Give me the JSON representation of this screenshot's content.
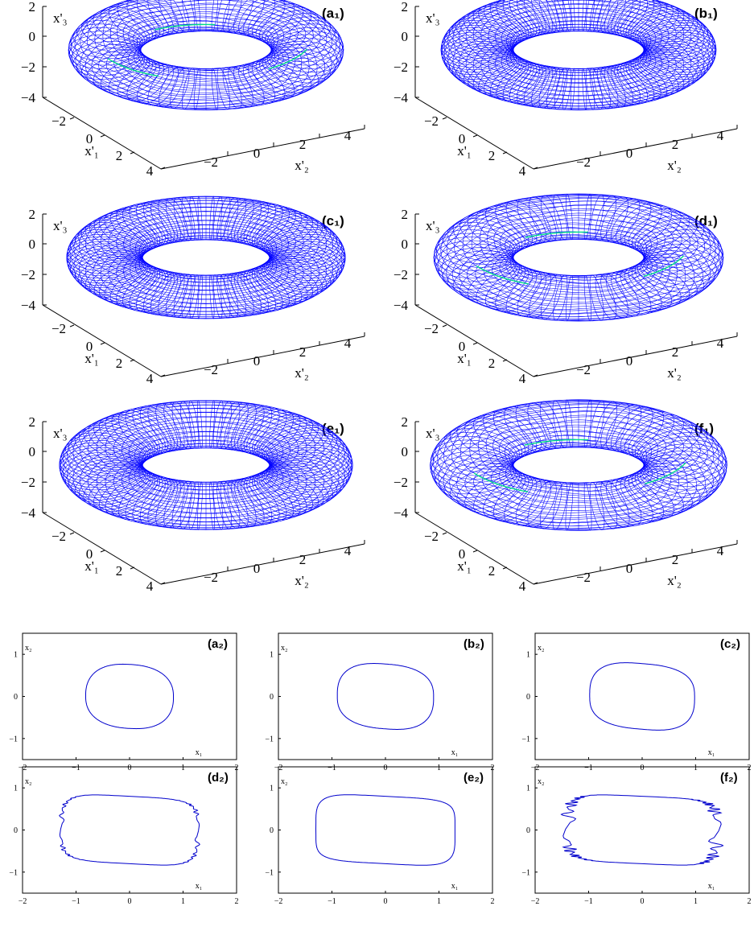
{
  "chart_data": [
    {
      "type": "surface3d",
      "panel_label": "(a₁)",
      "surface": "torus",
      "surface_color": "#0000ff",
      "highlight_color": "#00dd88",
      "major_radius": 2.8,
      "minor_radius": 1.0,
      "x1_range": [
        -4,
        4
      ],
      "x2_range": [
        -4,
        4
      ],
      "x3_range": [
        -4,
        2
      ],
      "x1_ticks": [
        "−2",
        "0",
        "2",
        "4"
      ],
      "x2_ticks": [
        "−2",
        "0",
        "2",
        "4"
      ],
      "x3_ticks": [
        "2",
        "0",
        "−2",
        "−4"
      ],
      "x1_label": "x'₁",
      "x2_label": "x'₂",
      "x3_label": "x'₃",
      "mesh": "perturbed",
      "mesh_density": 2
    },
    {
      "type": "surface3d",
      "panel_label": "(b₁)",
      "surface": "torus",
      "surface_color": "#0000ff",
      "highlight_color": "#00dd88",
      "major_radius": 2.8,
      "minor_radius": 1.0,
      "x1_range": [
        -4,
        4
      ],
      "x2_range": [
        -4,
        4
      ],
      "x3_range": [
        -4,
        2
      ],
      "x1_ticks": [
        "−2",
        "0",
        "2",
        "4"
      ],
      "x2_ticks": [
        "−2",
        "0",
        "2",
        "4"
      ],
      "x3_ticks": [
        "2",
        "0",
        "−2",
        "−4"
      ],
      "x1_label": "x'₁",
      "x2_label": "x'₂",
      "x3_label": "x'₃",
      "mesh": "smooth",
      "mesh_density": 3
    },
    {
      "type": "surface3d",
      "panel_label": "(c₁)",
      "surface": "torus",
      "surface_color": "#0000ff",
      "highlight_color": "#00dd88",
      "major_radius": 2.8,
      "minor_radius": 1.05,
      "x1_range": [
        -4,
        4
      ],
      "x2_range": [
        -4,
        4
      ],
      "x3_range": [
        -4,
        2
      ],
      "x1_ticks": [
        "−2",
        "0",
        "2",
        "4"
      ],
      "x2_ticks": [
        "−2",
        "0",
        "2",
        "4"
      ],
      "x3_ticks": [
        "2",
        "0",
        "−2",
        "−4"
      ],
      "x1_label": "x'₁",
      "x2_label": "x'₂",
      "x3_label": "x'₃",
      "mesh": "smooth",
      "mesh_density": 3
    },
    {
      "type": "surface3d",
      "panel_label": "(d₁)",
      "surface": "torus",
      "surface_color": "#0000ff",
      "highlight_color": "#00dd88",
      "major_radius": 2.9,
      "minor_radius": 1.1,
      "x1_range": [
        -4,
        4
      ],
      "x2_range": [
        -4,
        4
      ],
      "x3_range": [
        -4,
        2
      ],
      "x1_ticks": [
        "−2",
        "0",
        "2",
        "4"
      ],
      "x2_ticks": [
        "−2",
        "0",
        "2",
        "4"
      ],
      "x3_ticks": [
        "2",
        "0",
        "−2",
        "−4"
      ],
      "x1_label": "x'₁",
      "x2_label": "x'₂",
      "x3_label": "x'₃",
      "mesh": "perturbed",
      "mesh_density": 2
    },
    {
      "type": "surface3d",
      "panel_label": "(e₁)",
      "surface": "torus",
      "surface_color": "#0000ff",
      "highlight_color": "#00dd88",
      "major_radius": 2.9,
      "minor_radius": 1.15,
      "x1_range": [
        -4,
        4
      ],
      "x2_range": [
        -4,
        4
      ],
      "x3_range": [
        -4,
        2
      ],
      "x1_ticks": [
        "−2",
        "0",
        "2",
        "4"
      ],
      "x2_ticks": [
        "−2",
        "0",
        "2",
        "4"
      ],
      "x3_ticks": [
        "2",
        "0",
        "−2",
        "−4"
      ],
      "x1_label": "x'₁",
      "x2_label": "x'₂",
      "x3_label": "x'₃",
      "mesh": "smooth",
      "mesh_density": 3
    },
    {
      "type": "surface3d",
      "panel_label": "(f₁)",
      "surface": "torus",
      "surface_color": "#0000ff",
      "highlight_color": "#00dd88",
      "major_radius": 2.95,
      "minor_radius": 1.15,
      "x1_range": [
        -4,
        4
      ],
      "x2_range": [
        -4,
        4
      ],
      "x3_range": [
        -4,
        2
      ],
      "x1_ticks": [
        "−2",
        "0",
        "2",
        "4"
      ],
      "x2_ticks": [
        "−2",
        "0",
        "2",
        "4"
      ],
      "x3_ticks": [
        "2",
        "0",
        "−2",
        "−4"
      ],
      "x1_label": "x'₁",
      "x2_label": "x'₂",
      "x3_label": "x'₃",
      "mesh": "perturbed",
      "mesh_density": 2
    },
    {
      "type": "line",
      "panel_label": "(a₂)",
      "line_color": "#0000cc",
      "xlim": [
        -2,
        2
      ],
      "ylim": [
        -1.5,
        1.5
      ],
      "xticks": [
        -2,
        -1,
        0,
        1,
        2
      ],
      "yticks": [
        1,
        0,
        -1
      ],
      "xlabel": "x₁",
      "ylabel": "x₂",
      "curve": {
        "a": 0.82,
        "b": 0.76,
        "n": 2.4,
        "skew": -0.15,
        "rough": 0.0
      }
    },
    {
      "type": "line",
      "panel_label": "(b₂)",
      "line_color": "#0000cc",
      "xlim": [
        -2,
        2
      ],
      "ylim": [
        -1.5,
        1.5
      ],
      "xticks": [
        -2,
        -1,
        0,
        1,
        2
      ],
      "yticks": [
        1,
        0,
        -1
      ],
      "xlabel": "x₁",
      "ylabel": "x₂",
      "curve": {
        "a": 0.9,
        "b": 0.77,
        "n": 2.6,
        "skew": -0.2,
        "rough": 0.0
      }
    },
    {
      "type": "line",
      "panel_label": "(c₂)",
      "line_color": "#0000cc",
      "xlim": [
        -2,
        2
      ],
      "ylim": [
        -1.5,
        1.5
      ],
      "xticks": [
        -2,
        -1,
        0,
        1,
        2
      ],
      "yticks": [
        1,
        0,
        -1
      ],
      "xlabel": "x₁",
      "ylabel": "x₂",
      "curve": {
        "a": 0.98,
        "b": 0.78,
        "n": 2.8,
        "skew": -0.22,
        "rough": 0.0
      }
    },
    {
      "type": "line",
      "panel_label": "(d₂)",
      "line_color": "#0000cc",
      "xlim": [
        -2,
        2
      ],
      "ylim": [
        -1.5,
        1.5
      ],
      "xticks": [
        -2,
        -1,
        0,
        1,
        2
      ],
      "yticks": [
        1,
        0,
        -1
      ],
      "xlabel": "x₁",
      "ylabel": "x₂",
      "curve": {
        "a": 1.27,
        "b": 0.8,
        "n": 4.5,
        "skew": -0.14,
        "rough": 0.03
      }
    },
    {
      "type": "line",
      "panel_label": "(e₂)",
      "line_color": "#0000cc",
      "xlim": [
        -2,
        2
      ],
      "ylim": [
        -1.5,
        1.5
      ],
      "xticks": [
        -2,
        -1,
        0,
        1,
        2
      ],
      "yticks": [
        1,
        0,
        -1
      ],
      "xlabel": "x₁",
      "ylabel": "x₂",
      "curve": {
        "a": 1.3,
        "b": 0.8,
        "n": 4.8,
        "skew": -0.14,
        "rough": 0.0
      }
    },
    {
      "type": "line",
      "panel_label": "(f₂)",
      "line_color": "#0000cc",
      "xlim": [
        -2,
        2
      ],
      "ylim": [
        -1.5,
        1.5
      ],
      "xticks": [
        -2,
        -1,
        0,
        1,
        2
      ],
      "yticks": [
        1,
        0,
        -1
      ],
      "xlabel": "x₁",
      "ylabel": "x₂",
      "curve": {
        "a": 1.38,
        "b": 0.8,
        "n": 5.0,
        "skew": -0.12,
        "rough": 0.09
      }
    }
  ]
}
